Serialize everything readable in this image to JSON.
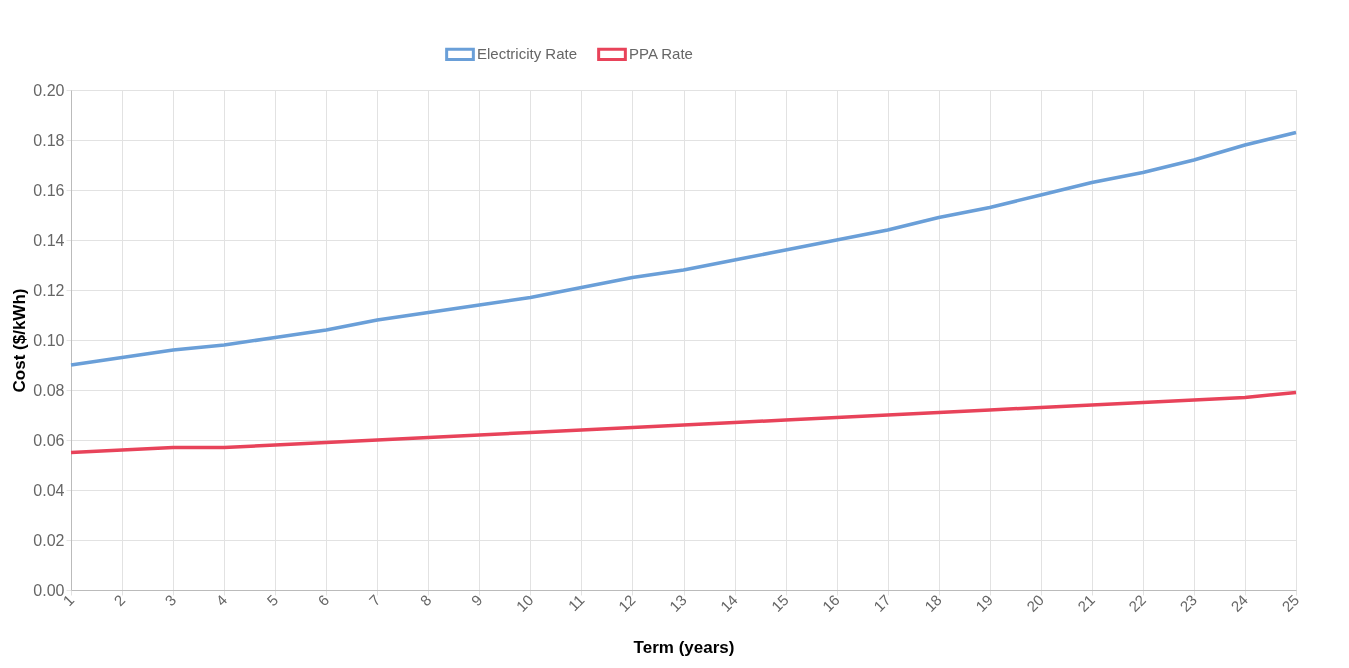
{
  "chart_data": {
    "type": "line",
    "xlabel": "Term (years)",
    "ylabel": "Cost ($/kWh)",
    "x": [
      1,
      2,
      3,
      4,
      5,
      6,
      7,
      8,
      9,
      10,
      11,
      12,
      13,
      14,
      15,
      16,
      17,
      18,
      19,
      20,
      21,
      22,
      23,
      24,
      25
    ],
    "series": [
      {
        "name": "Electricity Rate",
        "color": "#6a9fd8",
        "values": [
          0.09,
          0.093,
          0.096,
          0.098,
          0.101,
          0.104,
          0.108,
          0.111,
          0.114,
          0.117,
          0.121,
          0.125,
          0.128,
          0.132,
          0.136,
          0.14,
          0.144,
          0.149,
          0.153,
          0.158,
          0.163,
          0.167,
          0.172,
          0.178,
          0.183
        ]
      },
      {
        "name": "PPA Rate",
        "color": "#e8435a",
        "values": [
          0.055,
          0.056,
          0.057,
          0.057,
          0.058,
          0.059,
          0.06,
          0.061,
          0.062,
          0.063,
          0.064,
          0.065,
          0.066,
          0.067,
          0.068,
          0.069,
          0.07,
          0.071,
          0.072,
          0.073,
          0.074,
          0.075,
          0.076,
          0.077,
          0.079
        ]
      }
    ],
    "xlim": [
      1,
      25
    ],
    "xticks": [
      1,
      2,
      3,
      4,
      5,
      6,
      7,
      8,
      9,
      10,
      11,
      12,
      13,
      14,
      15,
      16,
      17,
      18,
      19,
      20,
      21,
      22,
      23,
      24,
      25
    ],
    "ylim": [
      0,
      0.2
    ],
    "yticks": [
      {
        "value": 0,
        "label": "0.00"
      },
      {
        "value": 0.02,
        "label": "0.02"
      },
      {
        "value": 0.04,
        "label": "0.04"
      },
      {
        "value": 0.06,
        "label": "0.06"
      },
      {
        "value": 0.08,
        "label": "0.08"
      },
      {
        "value": 0.1,
        "label": "0.10"
      },
      {
        "value": 0.12,
        "label": "0.12"
      },
      {
        "value": 0.14,
        "label": "0.14"
      },
      {
        "value": 0.16,
        "label": "0.16"
      },
      {
        "value": 0.18,
        "label": "0.18"
      },
      {
        "value": 0.2,
        "label": "0.20"
      }
    ],
    "grid": true,
    "legend": "top",
    "marker": "none",
    "line_style": "solid"
  }
}
